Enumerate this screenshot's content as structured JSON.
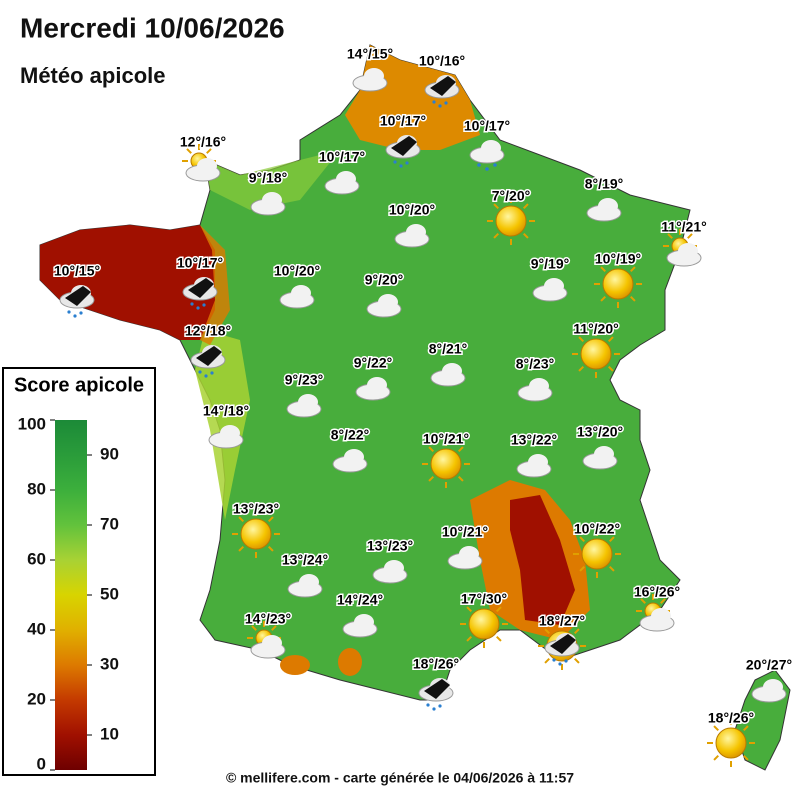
{
  "header": {
    "title": "Mercredi 10/06/2026",
    "subtitle": "Météo apicole"
  },
  "legend": {
    "title": "Score apicole",
    "lim": [
      0,
      100
    ],
    "ticks": [
      0,
      10,
      20,
      30,
      40,
      50,
      60,
      70,
      80,
      90,
      100
    ],
    "colors": [
      "#6e0000",
      "#a01000",
      "#c43a00",
      "#dd7a00",
      "#e0b000",
      "#d8d400",
      "#a8d234",
      "#62c23c",
      "#3caf3c",
      "#2a9c3a",
      "#1c8a38"
    ]
  },
  "stations": [
    {
      "label": "14°/15°",
      "weather": "cloud"
    },
    {
      "label": "10°/16°",
      "weather": "storm"
    },
    {
      "label": "12°/16°",
      "weather": "sun-cloud"
    },
    {
      "label": "10°/17°",
      "weather": "storm"
    },
    {
      "label": "10°/17°",
      "weather": "rain"
    },
    {
      "label": "10°/17°",
      "weather": "cloud"
    },
    {
      "label": "9°/18°",
      "weather": "cloud"
    },
    {
      "label": "7°/20°",
      "weather": "sun"
    },
    {
      "label": "8°/19°",
      "weather": "cloud"
    },
    {
      "label": "10°/20°",
      "weather": "cloud"
    },
    {
      "label": "11°/21°",
      "weather": "sun-cloud"
    },
    {
      "label": "10°/15°",
      "weather": "storm"
    },
    {
      "label": "10°/17°",
      "weather": "storm"
    },
    {
      "label": "10°/20°",
      "weather": "cloud"
    },
    {
      "label": "9°/20°",
      "weather": "cloud"
    },
    {
      "label": "9°/19°",
      "weather": "cloud"
    },
    {
      "label": "10°/19°",
      "weather": "sun"
    },
    {
      "label": "12°/18°",
      "weather": "storm"
    },
    {
      "label": "11°/20°",
      "weather": "sun"
    },
    {
      "label": "9°/22°",
      "weather": "cloud"
    },
    {
      "label": "8°/21°",
      "weather": "cloud"
    },
    {
      "label": "8°/23°",
      "weather": "cloud"
    },
    {
      "label": "9°/23°",
      "weather": "cloud"
    },
    {
      "label": "14°/18°",
      "weather": "cloud"
    },
    {
      "label": "8°/22°",
      "weather": "cloud"
    },
    {
      "label": "10°/21°",
      "weather": "sun"
    },
    {
      "label": "13°/22°",
      "weather": "cloud"
    },
    {
      "label": "13°/20°",
      "weather": "cloud"
    },
    {
      "label": "13°/23°",
      "weather": "sun"
    },
    {
      "label": "10°/21°",
      "weather": "cloud"
    },
    {
      "label": "10°/22°",
      "weather": "sun"
    },
    {
      "label": "13°/24°",
      "weather": "cloud"
    },
    {
      "label": "13°/23°",
      "weather": "cloud"
    },
    {
      "label": "16°/26°",
      "weather": "sun-cloud"
    },
    {
      "label": "17°/30°",
      "weather": "sun"
    },
    {
      "label": "14°/24°",
      "weather": "cloud"
    },
    {
      "label": "14°/23°",
      "weather": "sun-cloud"
    },
    {
      "label": "18°/27°",
      "weather": "sun-storm"
    },
    {
      "label": "18°/26°",
      "weather": "storm"
    },
    {
      "label": "20°/27°",
      "weather": "cloud"
    },
    {
      "label": "18°/26°",
      "weather": "sun"
    }
  ],
  "footer": "© mellifere.com - carte générée le 04/06/2026 à 11:57"
}
